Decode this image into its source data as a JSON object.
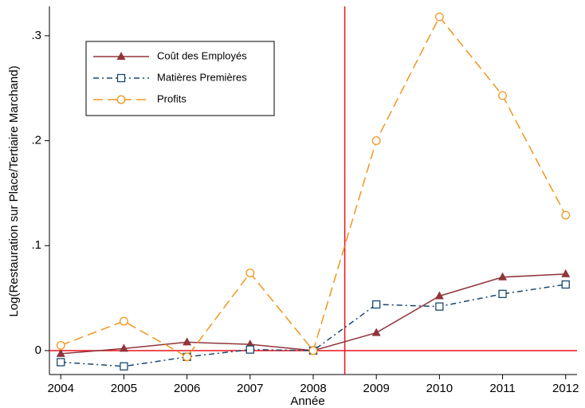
{
  "chart_data": {
    "type": "line",
    "x_label": "Année",
    "y_label": "Log(Restauration sur Place/Tertiaire Marchand)",
    "x": [
      2004,
      2005,
      2006,
      2007,
      2008,
      2009,
      2010,
      2011,
      2012
    ],
    "series": [
      {
        "name": "Coût des Employés",
        "color": "#90353b",
        "marker": "triangle",
        "dash": "solid",
        "values": [
          -0.003,
          0.002,
          0.008,
          0.006,
          0,
          0.017,
          0.052,
          0.07,
          0.073
        ]
      },
      {
        "name": "Matières Premières",
        "color": "#1a476f",
        "marker": "square",
        "dash": "dashdot",
        "values": [
          -0.011,
          -0.015,
          -0.006,
          0.001,
          0,
          0.044,
          0.042,
          0.054,
          0.063
        ]
      },
      {
        "name": "Profits",
        "color": "#f0961e",
        "marker": "circle",
        "dash": "dash",
        "values": [
          0.005,
          0.028,
          -0.006,
          0.074,
          0,
          0.2,
          0.318,
          0.243,
          0.129
        ]
      }
    ],
    "xlim": [
      2003.82,
      2012.18
    ],
    "ylim": [
      -0.0228,
      0.328
    ],
    "xticks": [
      2004,
      2005,
      2006,
      2007,
      2008,
      2009,
      2010,
      2011,
      2012
    ],
    "yticks": [
      0,
      {
        "value": 0.1,
        "label": ".1"
      },
      {
        "value": 0.2,
        "label": ".2"
      },
      {
        "value": 0.3,
        "label": ".3"
      }
    ],
    "xline": 2008.5,
    "yline": 0,
    "ref_color": "#e8141c",
    "grid": false,
    "legend": "upper left"
  }
}
